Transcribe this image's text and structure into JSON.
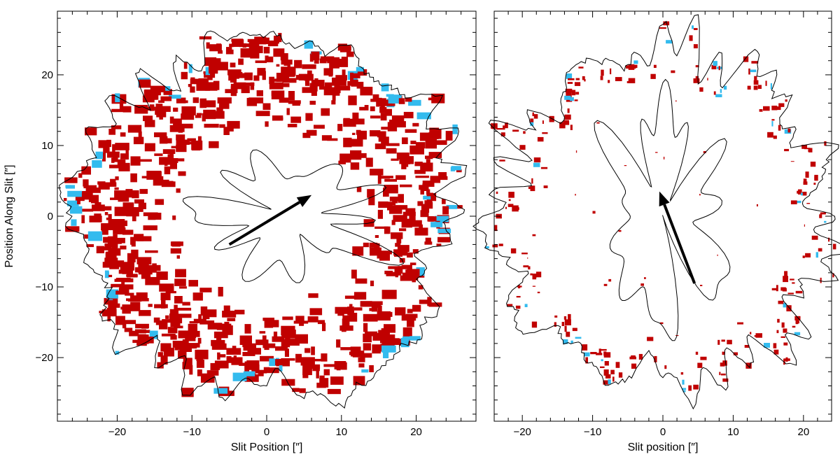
{
  "figure": {
    "panels": [
      {
        "id": "left",
        "xlabel": "Slit Position [″]",
        "ylabel": "Position Along Slit [″]",
        "xlim": [
          -28,
          28
        ],
        "ylim": [
          -29,
          29
        ],
        "xticks": [
          -20,
          -10,
          0,
          10,
          20
        ],
        "yticks": [
          -20,
          -10,
          0,
          10,
          20
        ],
        "xtick_labels": [
          "−20",
          "−10",
          "0",
          "10",
          "20"
        ],
        "ytick_labels": [
          "−20",
          "−10",
          "0",
          "10",
          "20"
        ],
        "arrow": {
          "from": [
            -5,
            -4
          ],
          "to": [
            6,
            3
          ]
        },
        "outer_ring_radius": 25.2,
        "inner_ring_radius": 12,
        "seed": 11
      },
      {
        "id": "right",
        "xlabel": "Slit position [″]",
        "ylabel": "",
        "xlim": [
          -24,
          24
        ],
        "ylim": [
          -29,
          29
        ],
        "xticks": [
          -20,
          -10,
          0,
          10,
          20
        ],
        "yticks": [
          -20,
          -10,
          0,
          10,
          20
        ],
        "xtick_labels": [
          "−20",
          "−10",
          "0",
          "10",
          "20"
        ],
        "ytick_labels": [],
        "arrow": {
          "from": [
            4.5,
            -9.5
          ],
          "to": [
            -0.5,
            3.5
          ]
        },
        "outer_ring_radius": 23.5,
        "inner_ring_radius": 19,
        "seed": 29
      }
    ],
    "colors": {
      "red_patch": "#c00000",
      "blue_patch": "#33bbee",
      "contour": "#000000",
      "axes": "#000000"
    }
  }
}
